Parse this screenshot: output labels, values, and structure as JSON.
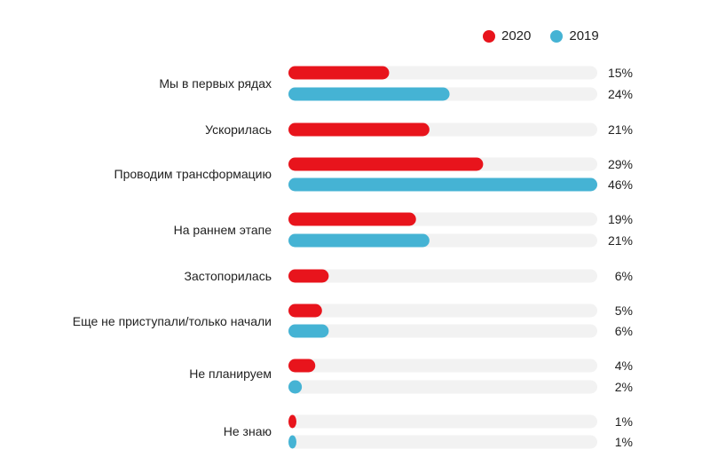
{
  "legend": {
    "items": [
      {
        "label": "2020",
        "color": "#e8141c"
      },
      {
        "label": "2019",
        "color": "#45b3d4"
      }
    ]
  },
  "chart_data": {
    "type": "bar",
    "orientation": "horizontal",
    "categories": [
      "Мы в первых рядах",
      "Ускорилась",
      "Проводим трансформацию",
      "На раннем этапе",
      "Застопорилась",
      "Еще не приступали/только начали",
      "Не планируем",
      "Не знаю"
    ],
    "series": [
      {
        "name": "2020",
        "color": "#e8141c",
        "values": [
          15,
          21,
          29,
          19,
          6,
          5,
          4,
          1
        ],
        "labels": [
          "15%",
          "21%",
          "29%",
          "19%",
          "6%",
          "5%",
          "4%",
          "1%"
        ]
      },
      {
        "name": "2019",
        "color": "#45b3d4",
        "values": [
          24,
          null,
          46,
          21,
          null,
          6,
          2,
          1
        ],
        "labels": [
          "24%",
          null,
          "46%",
          "21%",
          null,
          "6%",
          "2%",
          "1%"
        ]
      }
    ],
    "xlim": [
      0,
      46
    ],
    "track_color": "#f2f2f2",
    "grid": false,
    "legend_position": "top-right"
  }
}
